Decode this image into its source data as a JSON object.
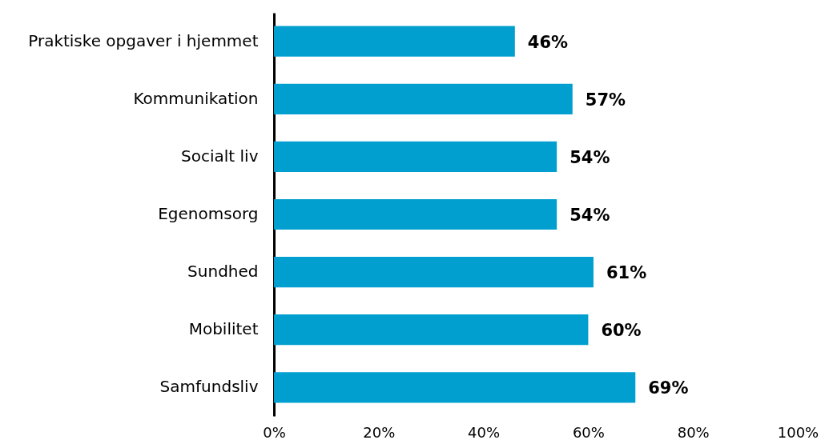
{
  "chart_data": {
    "type": "bar",
    "orientation": "horizontal",
    "categories": [
      "Praktiske opgaver i hjemmet",
      "Kommunikation",
      "Socialt liv",
      "Egenomsorg",
      "Sundhed",
      "Mobilitet",
      "Samfundsliv"
    ],
    "values": [
      46,
      57,
      54,
      54,
      61,
      60,
      69
    ],
    "value_labels": [
      "46%",
      "57%",
      "54%",
      "54%",
      "61%",
      "60%",
      "69%"
    ],
    "color": "#009fcf",
    "xlim": [
      0,
      100
    ],
    "xticks": [
      {
        "value": 0,
        "label": "0%"
      },
      {
        "value": 20,
        "label": "20%"
      },
      {
        "value": 40,
        "label": "40%"
      },
      {
        "value": 60,
        "label": "60%"
      },
      {
        "value": 80,
        "label": "80%"
      },
      {
        "value": 100,
        "label": "100%"
      }
    ],
    "grid": false
  }
}
